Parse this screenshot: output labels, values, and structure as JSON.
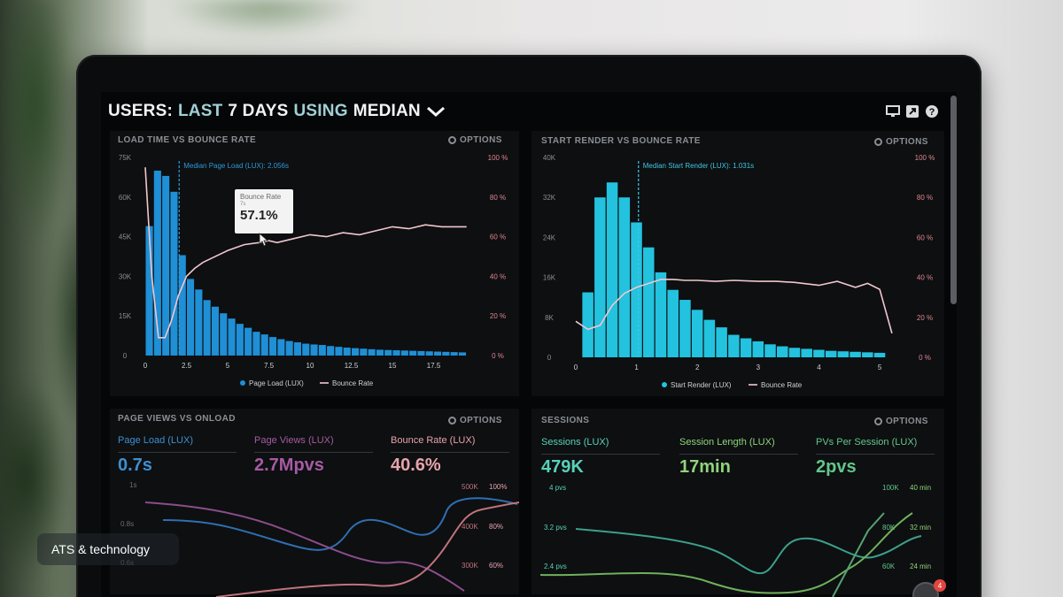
{
  "dashboard": {
    "title_bold": "USERS:",
    "title_dim": "LAST",
    "title_days": "7 DAYS",
    "title_using": "USING",
    "title_median": "MEDIAN",
    "icons": [
      "monitor-icon",
      "share-icon",
      "help-icon"
    ]
  },
  "panels": {
    "load_time": {
      "label": "LOAD TIME VS BOUNCE RATE",
      "options": "OPTIONS",
      "median_note": "Median Page Load (LUX): 2.056s",
      "legend_a": "Page Load (LUX)",
      "legend_b": "Bounce Rate",
      "tooltip_title": "Bounce Rate",
      "tooltip_sub": "7s",
      "tooltip_value": "57.1%"
    },
    "start_render": {
      "label": "START RENDER VS BOUNCE RATE",
      "options": "OPTIONS",
      "median_note": "Median Start Render (LUX): 1.031s",
      "legend_a": "Start Render (LUX)",
      "legend_b": "Bounce Rate"
    },
    "page_views": {
      "label": "PAGE VIEWS VS ONLOAD",
      "options": "OPTIONS",
      "metrics": [
        {
          "label": "Page Load (LUX)",
          "value": "0.7s"
        },
        {
          "label": "Page Views (LUX)",
          "value": "2.7Mpvs"
        },
        {
          "label": "Bounce Rate (LUX)",
          "value": "40.6%"
        }
      ],
      "left_ticks": [
        "1s",
        "0.8s",
        "0.6s"
      ],
      "right_ticks_a": [
        "500K",
        "400K",
        "300K"
      ],
      "right_ticks_b": [
        "100%",
        "80%",
        "60%"
      ]
    },
    "sessions": {
      "label": "SESSIONS",
      "options": "OPTIONS",
      "metrics": [
        {
          "label": "Sessions (LUX)",
          "value": "479K"
        },
        {
          "label": "Session Length (LUX)",
          "value": "17min"
        },
        {
          "label": "PVs Per Session (LUX)",
          "value": "2pvs"
        }
      ],
      "left_ticks": [
        "4 pvs",
        "3.2 pvs",
        "2.4 pvs"
      ],
      "right_ticks_a": [
        "100K",
        "80K",
        "60K"
      ],
      "right_ticks_b": [
        "40 min",
        "32 min",
        "24 min"
      ]
    }
  },
  "chart_data": [
    {
      "type": "bar",
      "title": "LOAD TIME VS BOUNCE RATE",
      "x_ticks": [
        "0",
        "2.5",
        "5",
        "7.5",
        "10",
        "12.5",
        "15",
        "17.5"
      ],
      "y_ticks_left": [
        "75K",
        "60K",
        "45K",
        "30K",
        "15K",
        "0"
      ],
      "y_ticks_right": [
        "100 %",
        "80 %",
        "60 %",
        "40 %",
        "20 %",
        "0 %"
      ],
      "ylim": [
        0,
        75000
      ],
      "bar_width": 0.5,
      "bars_x": [
        0,
        0.5,
        1,
        1.5,
        2,
        2.5,
        3,
        3.5,
        4,
        4.5,
        5,
        5.5,
        6,
        6.5,
        7,
        7.5,
        8,
        8.5,
        9,
        9.5,
        10,
        10.5,
        11,
        11.5,
        12,
        12.5,
        13,
        13.5,
        14,
        14.5,
        15,
        15.5,
        16,
        16.5,
        17,
        17.5,
        18,
        18.5,
        19
      ],
      "bars_values": [
        49000,
        70000,
        68000,
        62000,
        38000,
        29000,
        25000,
        21000,
        18500,
        16000,
        14000,
        12000,
        10500,
        9000,
        8000,
        7000,
        6200,
        5500,
        5000,
        4500,
        4200,
        4000,
        3600,
        3300,
        3000,
        2800,
        2600,
        2400,
        2200,
        2100,
        2000,
        1900,
        1800,
        1700,
        1600,
        1500,
        1400,
        1300,
        1200
      ],
      "line_x": [
        0,
        0.4,
        0.8,
        1.2,
        1.6,
        2,
        2.5,
        3,
        3.5,
        4,
        5,
        6,
        7,
        7.5,
        8,
        9,
        10,
        11,
        12,
        13,
        14,
        15,
        16,
        17,
        18,
        19.5
      ],
      "line_values": [
        95,
        40,
        9,
        9,
        18,
        30,
        40,
        44,
        47,
        49,
        53,
        56,
        57.1,
        58,
        57,
        59,
        61,
        60,
        62,
        61,
        63,
        65,
        64,
        66,
        65,
        65
      ],
      "series": [
        {
          "name": "Page Load (LUX)"
        },
        {
          "name": "Bounce Rate"
        }
      ],
      "median_x": 2.056
    },
    {
      "type": "bar",
      "title": "START RENDER VS BOUNCE RATE",
      "x_ticks": [
        "0",
        "1",
        "2",
        "3",
        "4",
        "5"
      ],
      "y_ticks_left": [
        "40K",
        "32K",
        "24K",
        "16K",
        "8K",
        "0"
      ],
      "y_ticks_right": [
        "100 %",
        "80 %",
        "60 %",
        "40 %",
        "20 %",
        "0 %"
      ],
      "ylim": [
        0,
        40000
      ],
      "bar_width": 0.2,
      "bars_x": [
        0.1,
        0.3,
        0.5,
        0.7,
        0.9,
        1.1,
        1.3,
        1.5,
        1.7,
        1.9,
        2.1,
        2.3,
        2.5,
        2.7,
        2.9,
        3.1,
        3.3,
        3.5,
        3.7,
        3.9,
        4.1,
        4.3,
        4.5,
        4.7,
        4.9
      ],
      "bars_values": [
        13000,
        32000,
        35000,
        32000,
        27000,
        22000,
        17000,
        13500,
        11500,
        9500,
        7500,
        6000,
        4500,
        3800,
        3200,
        2600,
        2200,
        1900,
        1700,
        1500,
        1300,
        1200,
        1100,
        1000,
        900
      ],
      "line_x": [
        0,
        0.2,
        0.4,
        0.6,
        0.8,
        1,
        1.2,
        1.4,
        1.6,
        1.8,
        2,
        2.3,
        2.6,
        3,
        3.3,
        3.6,
        4,
        4.3,
        4.6,
        4.8,
        5,
        5.2
      ],
      "line_values": [
        18,
        14,
        16,
        26,
        32,
        35,
        37,
        39,
        39,
        38.5,
        38.5,
        38,
        38.5,
        38,
        38,
        37.5,
        36,
        38,
        35,
        37,
        34,
        12
      ],
      "series": [
        {
          "name": "Start Render (LUX)"
        },
        {
          "name": "Bounce Rate"
        }
      ],
      "median_x": 1.031
    }
  ],
  "caption": {
    "text": "ATS & technology"
  },
  "notification": {
    "count": "4"
  }
}
